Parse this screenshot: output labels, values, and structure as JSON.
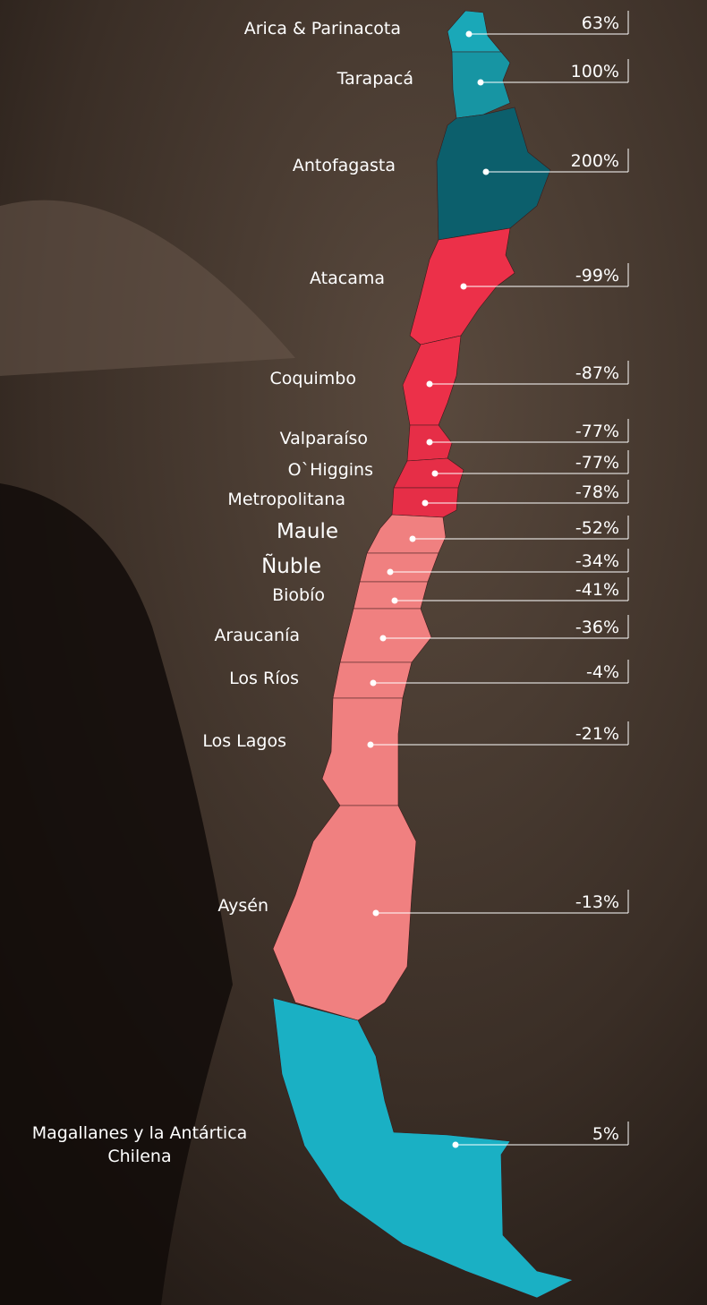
{
  "regions": [
    {
      "name": "Arica & Parinacota",
      "value": "63%",
      "color": "#1aa8b8"
    },
    {
      "name": "Tarapacá",
      "value": "100%",
      "color": "#1795a3"
    },
    {
      "name": "Antofagasta",
      "value": "200%",
      "color": "#0c5f6c"
    },
    {
      "name": "Atacama",
      "value": "-99%",
      "color": "#ec3049"
    },
    {
      "name": "Coquimbo",
      "value": "-87%",
      "color": "#ec3049"
    },
    {
      "name": "Valparaíso",
      "value": "-77%",
      "color": "#e62e47"
    },
    {
      "name": "O`Higgins",
      "value": "-77%",
      "color": "#e62e47"
    },
    {
      "name": "Metropolitana",
      "value": "-78%",
      "color": "#e62e47"
    },
    {
      "name": "Maule",
      "value": "-52%",
      "color": "#f08080"
    },
    {
      "name": "Ñuble",
      "value": "-34%",
      "color": "#f08080"
    },
    {
      "name": "Biobío",
      "value": "-41%",
      "color": "#f08080"
    },
    {
      "name": "Araucanía",
      "value": "-36%",
      "color": "#f08080"
    },
    {
      "name": "Los Ríos",
      "value": "-4%",
      "color": "#f08080"
    },
    {
      "name": "Los Lagos",
      "value": "-21%",
      "color": "#f08080"
    },
    {
      "name": "Aysén",
      "value": "-13%",
      "color": "#f08080"
    },
    {
      "name": "Magallanes y la Antártica Chilena",
      "value": "5%",
      "color": "#1ab0c4"
    }
  ]
}
